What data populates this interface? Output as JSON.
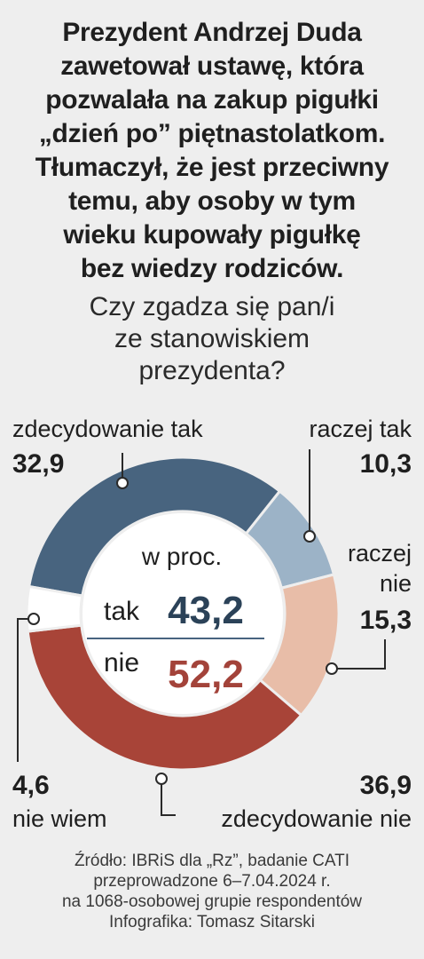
{
  "headline": [
    "Prezydent Andrzej Duda",
    "zawetował ustawę, która",
    "pozwalała na zakup pigułki",
    "„dzień po” piętnastolatkom.",
    "Tłumaczył, że jest przeciwny",
    "temu, aby osoby w tym",
    "wieku kupowały pigułkę",
    "bez wiedzy rodziców."
  ],
  "question": [
    "Czy zgadza się pan/i",
    "ze stanowiskiem",
    "prezydenta?"
  ],
  "chart_data": {
    "type": "pie",
    "donut": true,
    "unit_label": "w proc.",
    "slices": [
      {
        "label": "zdecydowanie tak",
        "value_text": "32,9",
        "value": 32.9,
        "color": "#48647f"
      },
      {
        "label": "raczej tak",
        "value_text": "10,3",
        "value": 10.3,
        "color": "#9cb3c7"
      },
      {
        "label_lines": [
          "raczej",
          "nie"
        ],
        "value_text": "15,3",
        "value": 15.3,
        "color": "#e8bda8"
      },
      {
        "label": "zdecydowanie nie",
        "value_text": "36,9",
        "value": 36.9,
        "color": "#a84438"
      },
      {
        "label": "nie wiem",
        "value_text": "4,6",
        "value": 4.6,
        "color": "#ffffff"
      }
    ],
    "totals": [
      {
        "label": "tak",
        "value_text": "43,2",
        "color": "#2b4258"
      },
      {
        "label": "nie",
        "value_text": "52,2",
        "color": "#a3433a"
      }
    ]
  },
  "source": [
    "Źródło: IBRiS dla „Rz”, badanie CATI",
    "przeprowadzone 6–7.04.2024 r.",
    "na 1068-osobowej grupie respondentów",
    "Infografika: Tomasz Sitarski"
  ]
}
